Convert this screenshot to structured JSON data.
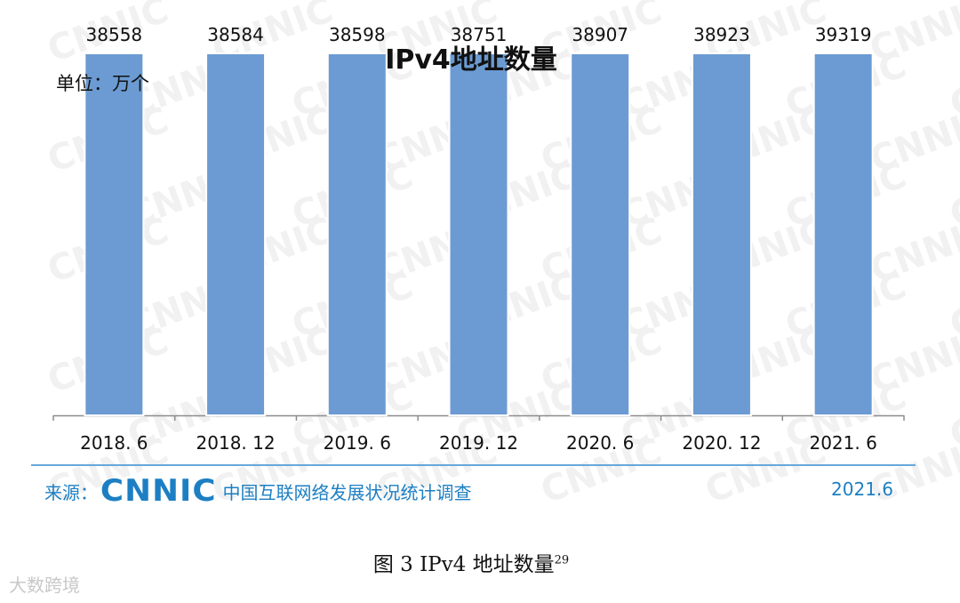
{
  "chart_data": {
    "type": "bar",
    "title": "IPv4地址数量",
    "unit_label": "单位：万个",
    "categories": [
      "2018. 6",
      "2018. 12",
      "2019. 6",
      "2019. 12",
      "2020. 6",
      "2020. 12",
      "2021. 6"
    ],
    "values": [
      38558,
      38584,
      38598,
      38751,
      38907,
      38923,
      39319
    ],
    "data_labels": [
      "38558",
      "38584",
      "38598",
      "38751",
      "38907",
      "38923",
      "39319"
    ],
    "bar_color": "#6b9bd2",
    "grid": false,
    "legend": "none"
  },
  "watermark": "CNNIC",
  "source": {
    "label": "来源：",
    "logo": "CNNIC",
    "org": "中国互联网络发展状况统计调查",
    "date": "2021.6"
  },
  "caption": {
    "text": "图  3    IPv4 地址数量",
    "footnote": "29"
  },
  "corner_watermark": "大数跨境"
}
